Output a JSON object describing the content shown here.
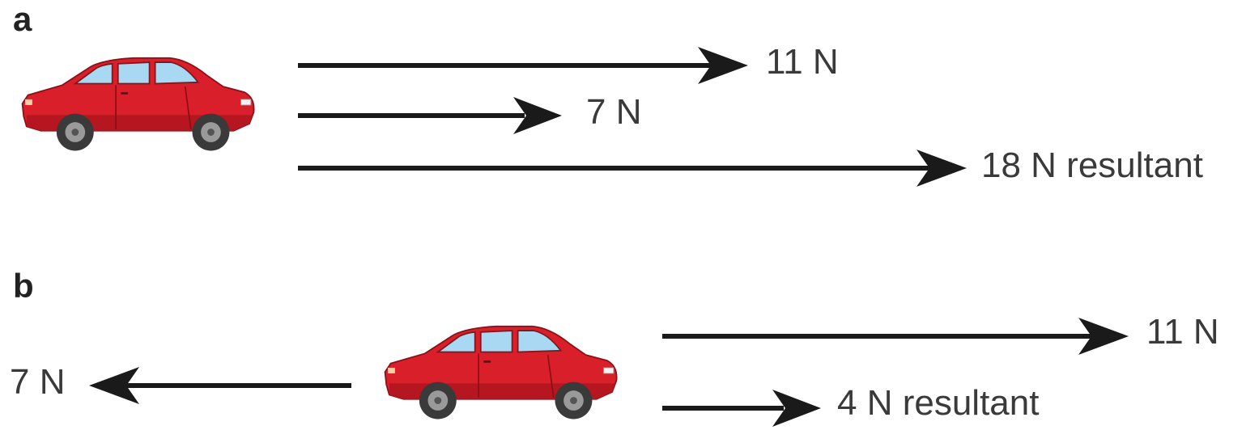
{
  "panels": [
    {
      "label": "a",
      "forces": [
        {
          "magnitude": "11 N",
          "direction": "right"
        },
        {
          "magnitude": "7 N",
          "direction": "right"
        },
        {
          "magnitude": "18 N resultant",
          "direction": "right"
        }
      ]
    },
    {
      "label": "b",
      "forces": [
        {
          "magnitude": "11 N",
          "direction": "right"
        },
        {
          "magnitude": "7 N",
          "direction": "left"
        },
        {
          "magnitude": "4 N resultant",
          "direction": "right"
        }
      ]
    }
  ],
  "colors": {
    "car_body": "#d9202a",
    "car_window": "#a9d9f2",
    "arrow": "#1a1a1a",
    "label_text": "#3a3a3a"
  }
}
